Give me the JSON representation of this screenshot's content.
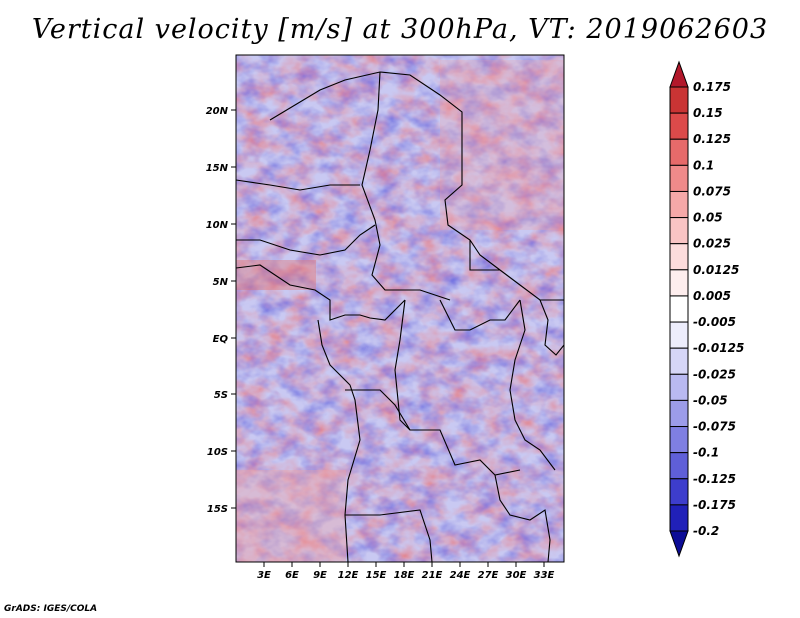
{
  "title": "Vertical velocity [m/s] at 300hPa, VT: 2019062603",
  "footer": "GrADS: IGES/COLA",
  "map": {
    "lon_labels": [
      "3E",
      "6E",
      "9E",
      "12E",
      "15E",
      "18E",
      "21E",
      "24E",
      "27E",
      "30E",
      "33E"
    ],
    "lat_labels": [
      "20N",
      "15N",
      "10N",
      "5N",
      "EQ",
      "5S",
      "10S",
      "15S"
    ]
  },
  "colorbar": {
    "levels": [
      "0.175",
      "0.15",
      "0.125",
      "0.1",
      "0.075",
      "0.05",
      "0.025",
      "0.0125",
      "0.005",
      "-0.005",
      "-0.0125",
      "-0.025",
      "-0.05",
      "-0.075",
      "-0.1",
      "-0.125",
      "-0.175",
      "-0.2"
    ],
    "colors": [
      "#b2182b",
      "#c93434",
      "#dc4a4a",
      "#e66a6a",
      "#ef8a8a",
      "#f5a8a8",
      "#f9c4c4",
      "#fcdcdc",
      "#feeeee",
      "#ffffff",
      "#ededfc",
      "#d6d6f7",
      "#b9b9f1",
      "#9c9ce9",
      "#7f7fe2",
      "#5f5fd8",
      "#3d3dcc",
      "#2020b8",
      "#0c0c96"
    ]
  }
}
